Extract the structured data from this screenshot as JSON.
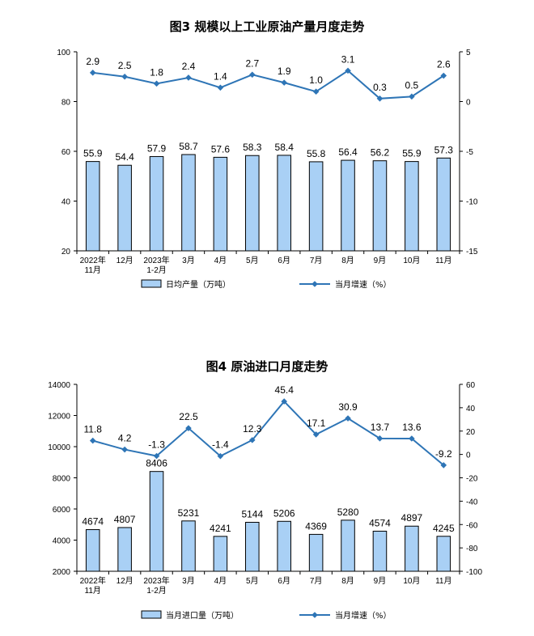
{
  "colors": {
    "bar_fill": "#a9d0f5",
    "bar_stroke": "#000000",
    "line": "#2e75b6",
    "axis": "#000000"
  },
  "chart_data": [
    {
      "type": "bar+line",
      "title": "图3  规模以上工业原油产量月度走势",
      "categories": [
        [
          "2022年",
          "11月"
        ],
        [
          "12月"
        ],
        [
          "2023年",
          "1-2月"
        ],
        [
          "3月"
        ],
        [
          "4月"
        ],
        [
          "5月"
        ],
        [
          "6月"
        ],
        [
          "7月"
        ],
        [
          "8月"
        ],
        [
          "9月"
        ],
        [
          "10月"
        ],
        [
          "11月"
        ]
      ],
      "series": [
        {
          "name": "日均产量（万吨）",
          "type": "bar",
          "axis": "left",
          "values": [
            55.9,
            54.4,
            57.9,
            58.7,
            57.6,
            58.3,
            58.4,
            55.8,
            56.4,
            56.2,
            55.9,
            57.3
          ],
          "labels": [
            "55.9",
            "54.4",
            "57.9",
            "58.7",
            "57.6",
            "58.3",
            "58.4",
            "55.8",
            "56.4",
            "56.2",
            "55.9",
            "57.3"
          ]
        },
        {
          "name": "当月增速（%）",
          "type": "line",
          "axis": "right",
          "values": [
            2.9,
            2.5,
            1.8,
            2.4,
            1.4,
            2.7,
            1.9,
            1.0,
            3.1,
            0.3,
            0.5,
            2.6
          ],
          "labels": [
            "2.9",
            "2.5",
            "1.8",
            "2.4",
            "1.4",
            "2.7",
            "1.9",
            "1.0",
            "3.1",
            "0.3",
            "0.5",
            "2.6"
          ]
        }
      ],
      "y_left": {
        "min": 20,
        "max": 100,
        "ticks": [
          "20",
          "40",
          "60",
          "80",
          "100"
        ]
      },
      "y_right": {
        "min": -15,
        "max": 5,
        "ticks": [
          "-15",
          "-10",
          "-5",
          "0",
          "5"
        ]
      },
      "grid": false,
      "legend_position": "bottom"
    },
    {
      "type": "bar+line",
      "title": "图4  原油进口月度走势",
      "categories": [
        [
          "2022年",
          "11月"
        ],
        [
          "12月"
        ],
        [
          "2023年",
          "1-2月"
        ],
        [
          "3月"
        ],
        [
          "4月"
        ],
        [
          "5月"
        ],
        [
          "6月"
        ],
        [
          "7月"
        ],
        [
          "8月"
        ],
        [
          "9月"
        ],
        [
          "10月"
        ],
        [
          "11月"
        ]
      ],
      "series": [
        {
          "name": "当月进口量（万吨）",
          "type": "bar",
          "axis": "left",
          "values": [
            4674,
            4807,
            8406,
            5231,
            4241,
            5144,
            5206,
            4369,
            5280,
            4574,
            4897,
            4245
          ],
          "labels": [
            "4674",
            "4807",
            "8406",
            "5231",
            "4241",
            "5144",
            "5206",
            "4369",
            "5280",
            "4574",
            "4897",
            "4245"
          ]
        },
        {
          "name": "当月增速（%）",
          "type": "line",
          "axis": "right",
          "values": [
            11.8,
            4.2,
            -1.3,
            22.5,
            -1.4,
            12.3,
            45.4,
            17.1,
            30.9,
            13.7,
            13.6,
            -9.2
          ],
          "labels": [
            "11.8",
            "4.2",
            "-1.3",
            "22.5",
            "-1.4",
            "12.3",
            "45.4",
            "17.1",
            "30.9",
            "13.7",
            "13.6",
            "-9.2"
          ]
        }
      ],
      "y_left": {
        "min": 2000,
        "max": 14000,
        "ticks": [
          "2000",
          "4000",
          "6000",
          "8000",
          "10000",
          "12000",
          "14000"
        ]
      },
      "y_right": {
        "min": -100,
        "max": 60,
        "ticks": [
          "-100",
          "-80",
          "-60",
          "-40",
          "-20",
          "0",
          "20",
          "40",
          "60"
        ]
      },
      "grid": false,
      "legend_position": "bottom"
    }
  ]
}
